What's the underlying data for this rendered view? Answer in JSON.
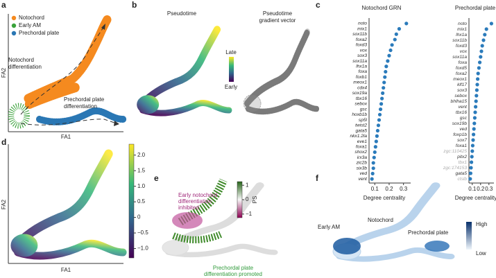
{
  "panels": {
    "a": {
      "label": "a",
      "legend": [
        "Notochord",
        "Early AM",
        "Prechordal plate"
      ],
      "legend_colors": [
        "#f58a1f",
        "#3aa23a",
        "#2a77b4"
      ],
      "annotations": [
        "Notochord",
        "differentiation",
        "Prechordal plate",
        "differentiation"
      ],
      "xlabel": "FA1",
      "ylabel": "FA2"
    },
    "b": {
      "label": "b",
      "title": "Pseudotime",
      "title2": [
        "Pseudotime",
        "gradient vector"
      ],
      "late": "Late",
      "early": "Early"
    },
    "c": {
      "label": "c"
    },
    "d": {
      "label": "d",
      "xlabel": "FA1",
      "ylabel": "FA2"
    },
    "e": {
      "label": "e",
      "annotation1": [
        "Early notochord",
        "differentiation",
        "inhibited"
      ],
      "annotation2": [
        "Prechordal plate",
        "differentiation promoted"
      ]
    },
    "f": {
      "label": "f",
      "labels": [
        "Notochord",
        "Early AM",
        "Prechordal plate"
      ],
      "high": "High",
      "low": "Low"
    }
  },
  "chart_data": [
    {
      "type": "dot",
      "title": "Notochord GRN",
      "xlabel": "Degree centrality",
      "color": "#2b7bbb",
      "categories": [
        "noto",
        "mix1",
        "sox11b",
        "foxa2",
        "foxd3",
        "vox",
        "sox3",
        "sox11a",
        "lhx1a",
        "foxa",
        "foxb1",
        "meox1",
        "cdx4",
        "sox19a",
        "tbx16",
        "sebox",
        "gsc",
        "hoxb1b",
        "sp5l",
        "twist2",
        "gata5",
        "nkx1.2la",
        "eve1",
        "foxa1",
        "shox2",
        "irx3a",
        "zic2b",
        "six3b",
        "ved",
        "vent"
      ],
      "values": [
        0.32,
        0.27,
        0.25,
        0.24,
        0.22,
        0.21,
        0.2,
        0.19,
        0.18,
        0.175,
        0.17,
        0.165,
        0.16,
        0.155,
        0.15,
        0.145,
        0.14,
        0.135,
        0.13,
        0.125,
        0.12,
        0.115,
        0.11,
        0.105,
        0.1,
        0.095,
        0.09,
        0.09,
        0.085,
        0.08
      ],
      "xlim": [
        0.06,
        0.35
      ],
      "xticks": [
        0.1,
        0.2,
        0.3
      ]
    },
    {
      "type": "dot",
      "title": "Prechordal plate GRN",
      "xlabel": "Degree centrality",
      "color": "#2b7bbb",
      "categories": [
        "noto",
        "mix1",
        "lhx1a",
        "sox11b",
        "foxd3",
        "vox",
        "sox11a",
        "foxa",
        "foxd5",
        "foxa2",
        "meox1",
        "klf17",
        "sox3",
        "sebox",
        "bhlha15",
        "vent",
        "tbx16",
        "gsc",
        "sox19b",
        "ved",
        "foxp1b",
        "sox7",
        "foxa1",
        "zgc:110425",
        "pitx2",
        "tbx1",
        "zgc:174153",
        "gata5",
        "ctslb"
      ],
      "category_colors": [
        "#333",
        "#333",
        "#333",
        "#333",
        "#333",
        "#333",
        "#333",
        "#333",
        "#333",
        "#333",
        "#333",
        "#333",
        "#333",
        "#333",
        "#333",
        "#333",
        "#333",
        "#333",
        "#333",
        "#333",
        "#333",
        "#333",
        "#333",
        "#aaa",
        "#333",
        "#aaa",
        "#aaa",
        "#333",
        "#aaa"
      ],
      "values": [
        0.33,
        0.27,
        0.25,
        0.235,
        0.22,
        0.21,
        0.2,
        0.19,
        0.18,
        0.17,
        0.165,
        0.16,
        0.155,
        0.15,
        0.145,
        0.14,
        0.135,
        0.13,
        0.125,
        0.12,
        0.115,
        0.11,
        0.105,
        0.1,
        0.095,
        0.09,
        0.085,
        0.08,
        0.075
      ],
      "xlim": [
        0.06,
        0.36
      ],
      "xticks": [
        0.1,
        0.2,
        0.3
      ]
    },
    {
      "type": "colorbar",
      "ylim": [
        -1.3,
        2.35
      ],
      "yticks": [
        {
          "value": 2.0,
          "label": "2.0"
        },
        1.5,
        {
          "value": 1.0,
          "label": "1.0"
        },
        0.5,
        0,
        {
          "value": -0.5,
          "label": "−0.5"
        },
        {
          "value": -1.0,
          "label": "−1.0"
        }
      ]
    },
    {
      "type": "colorbar",
      "title": "PS",
      "ylim": [
        -1.25,
        1.25
      ],
      "yticks": [
        1,
        0,
        {
          "value": -1,
          "label": "−1"
        }
      ]
    }
  ]
}
